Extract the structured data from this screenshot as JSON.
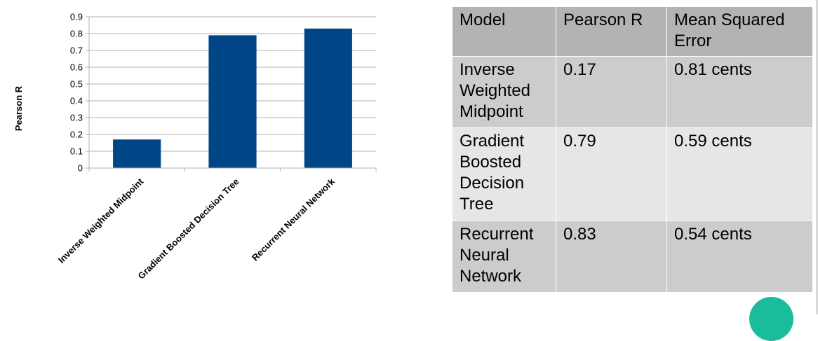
{
  "chart_data": {
    "type": "bar",
    "categories": [
      "Inverse Weighted Midpoint",
      "Gradient Boosted Decision Tree",
      "Recurrent Neural Network"
    ],
    "values": [
      0.17,
      0.79,
      0.83
    ],
    "ylabel": "Pearson R",
    "ylim": [
      0,
      0.9
    ],
    "yticks": [
      "0",
      "0.1",
      "0.2",
      "0.3",
      "0.4",
      "0.5",
      "0.6",
      "0.7",
      "0.8",
      "0.9"
    ],
    "grid": true,
    "bar_color": "#004586"
  },
  "table": {
    "headers": [
      "Model",
      "Pearson R",
      "Mean Squared Error"
    ],
    "rows": [
      [
        "Inverse Weighted Midpoint",
        "0.17",
        "0.81 cents"
      ],
      [
        "Gradient Boosted Decision Tree",
        "0.79",
        "0.59 cents"
      ],
      [
        "Recurrent Neural Network",
        "0.83",
        "0.54 cents"
      ]
    ]
  },
  "colors": {
    "header_bg": "#b3b3b3",
    "row_dark_bg": "#cccccc",
    "row_light_bg": "#e6e6e6",
    "accent_circle": "#1abc9c"
  }
}
